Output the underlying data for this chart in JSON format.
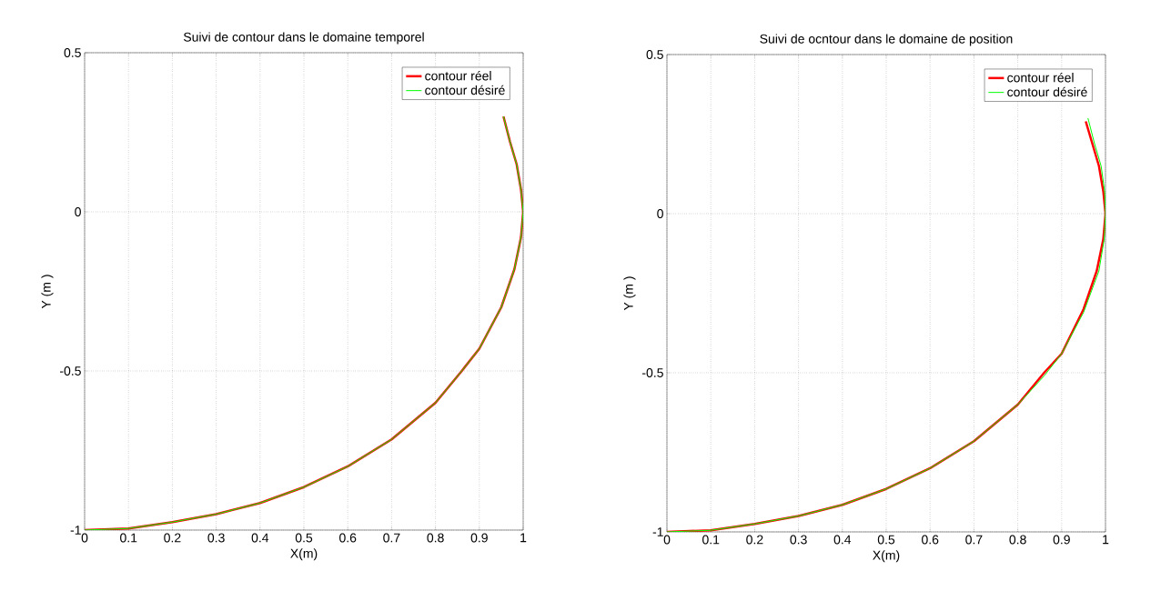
{
  "chart_data": [
    {
      "type": "line",
      "title": "Suivi de contour dans le domaine temporel",
      "xlabel": "X(m)",
      "ylabel": "Y (m )",
      "xlim": [
        0,
        1
      ],
      "ylim": [
        -1,
        0.5
      ],
      "xticks": [
        0,
        0.1,
        0.2,
        0.3,
        0.4,
        0.5,
        0.6,
        0.7,
        0.8,
        0.9,
        1
      ],
      "yticks": [
        -1,
        -0.5,
        0,
        0.5
      ],
      "grid": true,
      "legend": "top right",
      "series": [
        {
          "name": "contour réel",
          "color": "#ff0000",
          "x": [
            0,
            0.1,
            0.2,
            0.3,
            0.4,
            0.5,
            0.6,
            0.7,
            0.8,
            0.86,
            0.9,
            0.95,
            0.98,
            0.995,
            1,
            0.995,
            0.985,
            0.97,
            0.955
          ],
          "values": [
            -1,
            -0.995,
            -0.975,
            -0.95,
            -0.915,
            -0.865,
            -0.8,
            -0.715,
            -0.6,
            -0.5,
            -0.43,
            -0.3,
            -0.18,
            -0.08,
            0,
            0.07,
            0.15,
            0.22,
            0.3
          ]
        },
        {
          "name": "contour désiré",
          "color": "#00ff00",
          "x": [
            0,
            0.1,
            0.2,
            0.3,
            0.4,
            0.5,
            0.6,
            0.7,
            0.8,
            0.86,
            0.9,
            0.95,
            0.98,
            0.995,
            1,
            0.995,
            0.985,
            0.97,
            0.955
          ],
          "values": [
            -1,
            -0.995,
            -0.975,
            -0.95,
            -0.915,
            -0.865,
            -0.8,
            -0.715,
            -0.6,
            -0.5,
            -0.43,
            -0.3,
            -0.18,
            -0.08,
            0,
            0.07,
            0.15,
            0.22,
            0.3
          ]
        }
      ]
    },
    {
      "type": "line",
      "title": "Suivi de ocntour dans le domaine de position",
      "xlabel": "X(m)",
      "ylabel": "Y (m )",
      "xlim": [
        0,
        1
      ],
      "ylim": [
        -1,
        0.5
      ],
      "xticks": [
        0,
        0.1,
        0.2,
        0.3,
        0.4,
        0.5,
        0.6,
        0.7,
        0.8,
        0.9,
        1
      ],
      "yticks": [
        -1,
        -0.5,
        0,
        0.5
      ],
      "grid": true,
      "legend": "top right",
      "series": [
        {
          "name": "contour réel",
          "color": "#ff0000",
          "x": [
            0,
            0.1,
            0.2,
            0.3,
            0.4,
            0.5,
            0.6,
            0.7,
            0.8,
            0.86,
            0.9,
            0.95,
            0.98,
            0.995,
            1,
            0.995,
            0.985,
            0.97,
            0.955
          ],
          "values": [
            -1,
            -0.995,
            -0.975,
            -0.95,
            -0.915,
            -0.865,
            -0.8,
            -0.715,
            -0.6,
            -0.5,
            -0.44,
            -0.3,
            -0.18,
            -0.08,
            0,
            0.07,
            0.15,
            0.22,
            0.29
          ]
        },
        {
          "name": "contour désiré",
          "color": "#00ff00",
          "x": [
            0,
            0.1,
            0.2,
            0.3,
            0.4,
            0.5,
            0.6,
            0.7,
            0.8,
            0.86,
            0.9,
            0.95,
            0.985,
            0.997,
            1,
            0.998,
            0.99,
            0.975,
            0.96
          ],
          "values": [
            -1,
            -0.995,
            -0.975,
            -0.95,
            -0.915,
            -0.865,
            -0.8,
            -0.715,
            -0.6,
            -0.51,
            -0.44,
            -0.31,
            -0.18,
            -0.08,
            0,
            0.07,
            0.15,
            0.22,
            0.3
          ]
        }
      ]
    }
  ]
}
